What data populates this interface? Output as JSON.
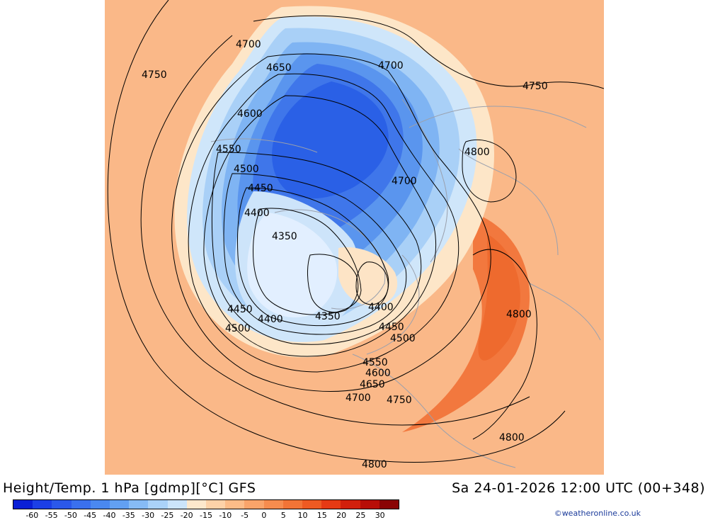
{
  "header": {
    "title": "Height/Temp. 1 hPa [gdmp][°C] GFS",
    "datetime": "Sa 24-01-2026 12:00 UTC (00+348)"
  },
  "credit": "©weatheronline.co.uk",
  "colorbar": {
    "labels": [
      "-60",
      "-55",
      "-50",
      "-45",
      "-40",
      "-35",
      "-30",
      "-25",
      "-20",
      "-15",
      "-10",
      "-5",
      "0",
      "5",
      "10",
      "15",
      "20",
      "25",
      "30"
    ],
    "colors": [
      "#0a1fd6",
      "#1c3fe6",
      "#2b58ea",
      "#3a70ee",
      "#4a88f0",
      "#62a0f2",
      "#86bbf5",
      "#aad2f8",
      "#cbe4fa",
      "#fde8cc",
      "#fdd2a8",
      "#fcbc88",
      "#f9a46a",
      "#f68c4e",
      "#f27436",
      "#ee5a22",
      "#e63a14",
      "#d2200c",
      "#b80e08",
      "#8a0404"
    ]
  },
  "map": {
    "contour_labels": [
      "4700",
      "4750",
      "4650",
      "4700",
      "4750",
      "4600",
      "4800",
      "4550",
      "4500",
      "4700",
      "4450",
      "4400",
      "4350",
      "4450",
      "4400",
      "4350",
      "4400",
      "4800",
      "4500",
      "4450",
      "4500",
      "4550",
      "4600",
      "4650",
      "4700",
      "4750",
      "4800",
      "4800"
    ]
  }
}
